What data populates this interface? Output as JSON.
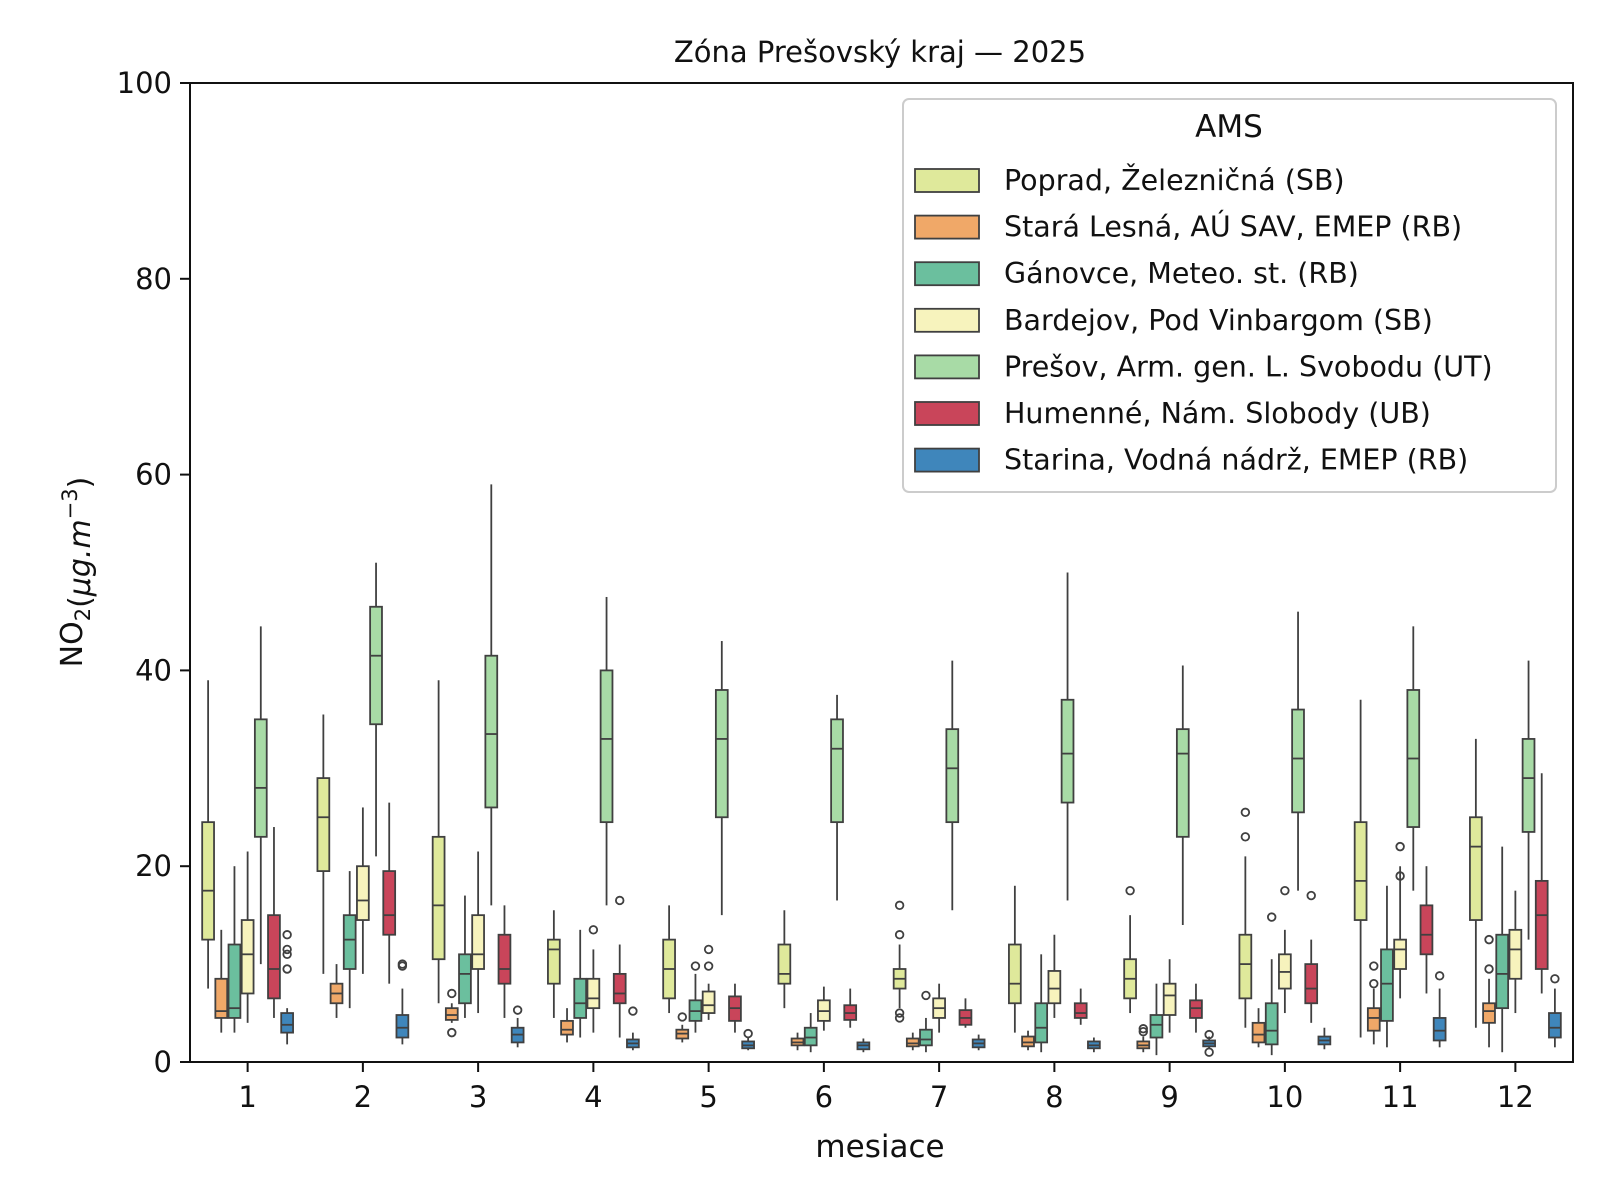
{
  "chart_data": {
    "type": "box",
    "title": "Zóna Prešovský kraj —  2025",
    "xlabel": "mesiace",
    "ylabel_main": "NO",
    "ylabel_sub": "2",
    "ylabel_unit_open": "(",
    "ylabel_unit_mu": "μg.m",
    "ylabel_unit_exp": "−3",
    "ylabel_unit_close": ")",
    "ylim": [
      0,
      100
    ],
    "yticks": [
      "0",
      "20",
      "40",
      "60",
      "80",
      "100"
    ],
    "categories": [
      "1",
      "2",
      "3",
      "4",
      "5",
      "6",
      "7",
      "8",
      "9",
      "10",
      "11",
      "12"
    ],
    "legend_title": "AMS",
    "legend_position": "top-right",
    "series": [
      {
        "name": "Poprad, Železničná (SB)",
        "color": "#dfe99b",
        "boxes": [
          {
            "min": 7.5,
            "q1": 12.5,
            "med": 17.5,
            "q3": 24.5,
            "max": 39,
            "outliers": []
          },
          {
            "min": 9,
            "q1": 19.5,
            "med": 25,
            "q3": 29,
            "max": 35.5,
            "outliers": []
          },
          {
            "min": 6,
            "q1": 10.5,
            "med": 16,
            "q3": 23,
            "max": 39,
            "outliers": []
          },
          {
            "min": 4.5,
            "q1": 8,
            "med": 11.5,
            "q3": 12.5,
            "max": 15.5,
            "outliers": []
          },
          {
            "min": 5,
            "q1": 6.5,
            "med": 9.5,
            "q3": 12.5,
            "max": 16,
            "outliers": []
          },
          {
            "min": 5.5,
            "q1": 8,
            "med": 9,
            "q3": 12,
            "max": 15.5,
            "outliers": []
          },
          {
            "min": 5.5,
            "q1": 7.5,
            "med": 8.5,
            "q3": 9.5,
            "max": 12,
            "outliers": [
              5,
              4.5,
              13,
              16
            ]
          },
          {
            "min": 3,
            "q1": 6,
            "med": 8,
            "q3": 12,
            "max": 18,
            "outliers": []
          },
          {
            "min": 5,
            "q1": 6.5,
            "med": 8.5,
            "q3": 10.5,
            "max": 15,
            "outliers": [
              17.5
            ]
          },
          {
            "min": 3.5,
            "q1": 6.5,
            "med": 10,
            "q3": 13,
            "max": 21,
            "outliers": [
              23,
              25.5
            ]
          },
          {
            "min": 2.5,
            "q1": 14.5,
            "med": 18.5,
            "q3": 24.5,
            "max": 37,
            "outliers": []
          },
          {
            "min": 3.5,
            "q1": 14.5,
            "med": 22,
            "q3": 25,
            "max": 33,
            "outliers": []
          }
        ]
      },
      {
        "name": "Stará Lesná, AÚ SAV, EMEP (RB)",
        "color": "#f0a868",
        "boxes": [
          {
            "min": 3,
            "q1": 4.5,
            "med": 5.2,
            "q3": 8.5,
            "max": 13.5,
            "outliers": []
          },
          {
            "min": 4.5,
            "q1": 6,
            "med": 7,
            "q3": 8,
            "max": 10,
            "outliers": []
          },
          {
            "min": 4,
            "q1": 4.3,
            "med": 4.8,
            "q3": 5.5,
            "max": 6,
            "outliers": [
              3,
              7
            ]
          },
          {
            "min": 2,
            "q1": 2.8,
            "med": 3.3,
            "q3": 4.2,
            "max": 5.5,
            "outliers": []
          },
          {
            "min": 2,
            "q1": 2.4,
            "med": 2.9,
            "q3": 3.3,
            "max": 3.8,
            "outliers": [
              4.6
            ]
          },
          {
            "min": 1.2,
            "q1": 1.7,
            "med": 2,
            "q3": 2.4,
            "max": 3,
            "outliers": []
          },
          {
            "min": 1.2,
            "q1": 1.6,
            "med": 1.9,
            "q3": 2.4,
            "max": 3,
            "outliers": []
          },
          {
            "min": 1.2,
            "q1": 1.6,
            "med": 2,
            "q3": 2.6,
            "max": 3.2,
            "outliers": []
          },
          {
            "min": 1,
            "q1": 1.4,
            "med": 1.7,
            "q3": 2.1,
            "max": 2.6,
            "outliers": [
              3.1,
              3.4
            ]
          },
          {
            "min": 1.5,
            "q1": 2,
            "med": 2.8,
            "q3": 4,
            "max": 5.5,
            "outliers": []
          },
          {
            "min": 1.8,
            "q1": 3.2,
            "med": 4.5,
            "q3": 5.5,
            "max": 7.5,
            "outliers": [
              8,
              9.8
            ]
          },
          {
            "min": 1.5,
            "q1": 4,
            "med": 5.2,
            "q3": 6,
            "max": 8.5,
            "outliers": [
              9.5,
              12.5
            ]
          }
        ]
      },
      {
        "name": "Gánovce, Meteo. st. (RB)",
        "color": "#6bbf9e",
        "boxes": [
          {
            "min": 3,
            "q1": 4.5,
            "med": 5.5,
            "q3": 12,
            "max": 20,
            "outliers": []
          },
          {
            "min": 5.5,
            "q1": 9.5,
            "med": 12.5,
            "q3": 15,
            "max": 19.5,
            "outliers": []
          },
          {
            "min": 4.5,
            "q1": 6,
            "med": 9,
            "q3": 11,
            "max": 17,
            "outliers": []
          },
          {
            "min": 2.5,
            "q1": 4.5,
            "med": 6,
            "q3": 8.5,
            "max": 13.5,
            "outliers": []
          },
          {
            "min": 3,
            "q1": 4.2,
            "med": 5.2,
            "q3": 6.3,
            "max": 9,
            "outliers": [
              9.8
            ]
          },
          {
            "min": 1,
            "q1": 1.7,
            "med": 2.5,
            "q3": 3.5,
            "max": 5,
            "outliers": []
          },
          {
            "min": 1,
            "q1": 1.7,
            "med": 2.3,
            "q3": 3.3,
            "max": 4.5,
            "outliers": [
              6.8
            ]
          },
          {
            "min": 1,
            "q1": 2,
            "med": 3.5,
            "q3": 6,
            "max": 11,
            "outliers": []
          },
          {
            "min": 0.7,
            "q1": 2.5,
            "med": 3.8,
            "q3": 4.8,
            "max": 8,
            "outliers": []
          },
          {
            "min": 0.7,
            "q1": 1.8,
            "med": 3.2,
            "q3": 6,
            "max": 10.5,
            "outliers": [
              14.8
            ]
          },
          {
            "min": 1.5,
            "q1": 4.2,
            "med": 8,
            "q3": 11.5,
            "max": 18,
            "outliers": []
          },
          {
            "min": 1,
            "q1": 5.5,
            "med": 9,
            "q3": 13,
            "max": 22,
            "outliers": []
          }
        ]
      },
      {
        "name": "Bardejov, Pod Vinbargom (SB)",
        "color": "#f7f3bd",
        "boxes": [
          {
            "min": 4,
            "q1": 7,
            "med": 11,
            "q3": 14.5,
            "max": 21.5,
            "outliers": []
          },
          {
            "min": 9,
            "q1": 14.5,
            "med": 16.5,
            "q3": 20,
            "max": 26,
            "outliers": []
          },
          {
            "min": 5,
            "q1": 9.5,
            "med": 11,
            "q3": 15,
            "max": 21.5,
            "outliers": []
          },
          {
            "min": 3,
            "q1": 5.5,
            "med": 6.5,
            "q3": 8.5,
            "max": 11.5,
            "outliers": [
              13.5
            ]
          },
          {
            "min": 4.3,
            "q1": 5,
            "med": 5.8,
            "q3": 7.2,
            "max": 8,
            "outliers": [
              9.8,
              11.5
            ]
          },
          {
            "min": 3.2,
            "q1": 4.2,
            "med": 5.2,
            "q3": 6.3,
            "max": 7.7,
            "outliers": []
          },
          {
            "min": 3,
            "q1": 4.5,
            "med": 5.5,
            "q3": 6.5,
            "max": 8,
            "outliers": []
          },
          {
            "min": 4.5,
            "q1": 6,
            "med": 7.5,
            "q3": 9.3,
            "max": 13,
            "outliers": []
          },
          {
            "min": 3,
            "q1": 4.8,
            "med": 6.8,
            "q3": 8,
            "max": 10.5,
            "outliers": []
          },
          {
            "min": 5,
            "q1": 7.5,
            "med": 9.2,
            "q3": 11,
            "max": 13.5,
            "outliers": [
              17.5
            ]
          },
          {
            "min": 6.5,
            "q1": 9.5,
            "med": 11.5,
            "q3": 12.5,
            "max": 20,
            "outliers": [
              19,
              22
            ]
          },
          {
            "min": 5,
            "q1": 8.5,
            "med": 11.5,
            "q3": 13.5,
            "max": 17.5,
            "outliers": []
          }
        ]
      },
      {
        "name": "Prešov, Arm. gen. L. Svobodu (UT)",
        "color": "#a8dba6",
        "boxes": [
          {
            "min": 10,
            "q1": 23,
            "med": 28,
            "q3": 35,
            "max": 44.5,
            "outliers": []
          },
          {
            "min": 21,
            "q1": 34.5,
            "med": 41.5,
            "q3": 46.5,
            "max": 51,
            "outliers": []
          },
          {
            "min": 16,
            "q1": 26,
            "med": 33.5,
            "q3": 41.5,
            "max": 59,
            "outliers": []
          },
          {
            "min": 16,
            "q1": 24.5,
            "med": 33,
            "q3": 40,
            "max": 47.5,
            "outliers": []
          },
          {
            "min": 15,
            "q1": 25,
            "med": 33,
            "q3": 38,
            "max": 43,
            "outliers": []
          },
          {
            "min": 16.5,
            "q1": 24.5,
            "med": 32,
            "q3": 35,
            "max": 37.5,
            "outliers": []
          },
          {
            "min": 15.5,
            "q1": 24.5,
            "med": 30,
            "q3": 34,
            "max": 41,
            "outliers": []
          },
          {
            "min": 16.5,
            "q1": 26.5,
            "med": 31.5,
            "q3": 37,
            "max": 50,
            "outliers": []
          },
          {
            "min": 14,
            "q1": 23,
            "med": 31.5,
            "q3": 34,
            "max": 40.5,
            "outliers": []
          },
          {
            "min": 17.5,
            "q1": 25.5,
            "med": 31,
            "q3": 36,
            "max": 46,
            "outliers": []
          },
          {
            "min": 17.5,
            "q1": 24,
            "med": 31,
            "q3": 38,
            "max": 44.5,
            "outliers": []
          },
          {
            "min": 12.5,
            "q1": 23.5,
            "med": 29,
            "q3": 33,
            "max": 41,
            "outliers": []
          }
        ]
      },
      {
        "name": "Humenné, Nám. Slobody (UB)",
        "color": "#c9455a",
        "boxes": [
          {
            "min": 4.5,
            "q1": 6.5,
            "med": 9.5,
            "q3": 15,
            "max": 24,
            "outliers": []
          },
          {
            "min": 8,
            "q1": 13,
            "med": 15,
            "q3": 19.5,
            "max": 26.5,
            "outliers": []
          },
          {
            "min": 4.5,
            "q1": 8,
            "med": 9.5,
            "q3": 13,
            "max": 16,
            "outliers": []
          },
          {
            "min": 2.5,
            "q1": 6,
            "med": 7,
            "q3": 9,
            "max": 12,
            "outliers": [
              16.5
            ]
          },
          {
            "min": 3,
            "q1": 4.2,
            "med": 5.5,
            "q3": 6.7,
            "max": 8,
            "outliers": []
          },
          {
            "min": 3.5,
            "q1": 4.3,
            "med": 5,
            "q3": 5.8,
            "max": 7.5,
            "outliers": []
          },
          {
            "min": 3.5,
            "q1": 3.8,
            "med": 4.5,
            "q3": 5.3,
            "max": 6.5,
            "outliers": []
          },
          {
            "min": 3.8,
            "q1": 4.5,
            "med": 5,
            "q3": 6,
            "max": 7.5,
            "outliers": []
          },
          {
            "min": 3,
            "q1": 4.5,
            "med": 5.5,
            "q3": 6.3,
            "max": 8,
            "outliers": []
          },
          {
            "min": 4,
            "q1": 6,
            "med": 7.5,
            "q3": 10,
            "max": 12.5,
            "outliers": [
              17
            ]
          },
          {
            "min": 7,
            "q1": 11,
            "med": 13,
            "q3": 16,
            "max": 20,
            "outliers": []
          },
          {
            "min": 7,
            "q1": 9.5,
            "med": 15,
            "q3": 18.5,
            "max": 29.5,
            "outliers": []
          }
        ]
      },
      {
        "name": "Starina, Vodná nádrž, EMEP (RB)",
        "color": "#3f86bb",
        "boxes": [
          {
            "min": 1.8,
            "q1": 3,
            "med": 3.8,
            "q3": 5,
            "max": 5.5,
            "outliers": [
              9.5,
              11,
              11.5,
              13
            ]
          },
          {
            "min": 1.8,
            "q1": 2.5,
            "med": 3.5,
            "q3": 4.8,
            "max": 7.5,
            "outliers": [
              9.8,
              10
            ]
          },
          {
            "min": 1.5,
            "q1": 2,
            "med": 2.8,
            "q3": 3.5,
            "max": 4.5,
            "outliers": [
              5.3
            ]
          },
          {
            "min": 1.2,
            "q1": 1.5,
            "med": 1.9,
            "q3": 2.3,
            "max": 3,
            "outliers": [
              5.2
            ]
          },
          {
            "min": 1.2,
            "q1": 1.4,
            "med": 1.7,
            "q3": 2.1,
            "max": 2.5,
            "outliers": [
              2.9
            ]
          },
          {
            "min": 1,
            "q1": 1.3,
            "med": 1.7,
            "q3": 2,
            "max": 2.4,
            "outliers": []
          },
          {
            "min": 1.2,
            "q1": 1.5,
            "med": 1.9,
            "q3": 2.3,
            "max": 2.8,
            "outliers": []
          },
          {
            "min": 1,
            "q1": 1.4,
            "med": 1.7,
            "q3": 2.1,
            "max": 2.5,
            "outliers": []
          },
          {
            "min": 1.3,
            "q1": 1.6,
            "med": 1.9,
            "q3": 2.2,
            "max": 2.6,
            "outliers": [
              1,
              2.8
            ]
          },
          {
            "min": 1.3,
            "q1": 1.8,
            "med": 2.2,
            "q3": 2.6,
            "max": 3.5,
            "outliers": []
          },
          {
            "min": 1.5,
            "q1": 2.2,
            "med": 3.2,
            "q3": 4.5,
            "max": 7.5,
            "outliers": [
              8.8
            ]
          },
          {
            "min": 1.5,
            "q1": 2.5,
            "med": 3.5,
            "q3": 5,
            "max": 7.5,
            "outliers": [
              8.5
            ]
          }
        ]
      }
    ]
  }
}
